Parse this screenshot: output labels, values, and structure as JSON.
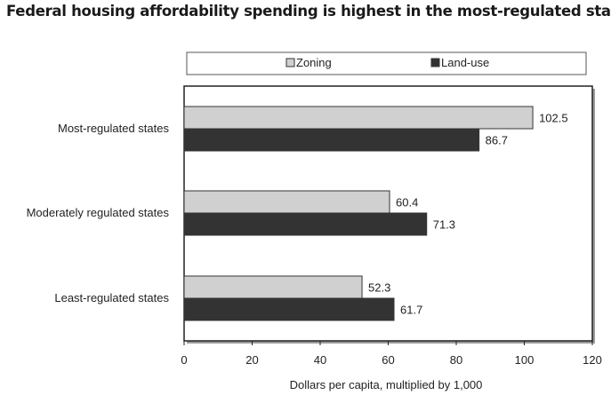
{
  "title": "Federal housing affordability spending is highest in the most-regulated states",
  "chart_data": {
    "type": "bar",
    "orientation": "horizontal",
    "title": "Federal housing affordability spending is highest in the most-regulated states",
    "categories": [
      "Most-regulated states",
      "Moderately regulated states",
      "Least-regulated states"
    ],
    "series": [
      {
        "name": "Zoning",
        "values": [
          102.5,
          60.4,
          52.3
        ],
        "color": "#d0d0d0"
      },
      {
        "name": "Land-use",
        "values": [
          86.7,
          71.3,
          61.7
        ],
        "color": "#333333"
      }
    ],
    "xlabel": "Dollars per capita, multiplied by 1,000",
    "ylabel": "",
    "xlim": [
      0,
      120
    ],
    "xticks": [
      "0",
      "20",
      "40",
      "60",
      "80",
      "100",
      "120"
    ],
    "data_labels": [
      "102.5",
      "86.7",
      "60.4",
      "71.3",
      "52.3",
      "61.7"
    ],
    "grid": false,
    "legend": {
      "position": "top",
      "entries": [
        "Zoning",
        "Land-use"
      ]
    }
  }
}
